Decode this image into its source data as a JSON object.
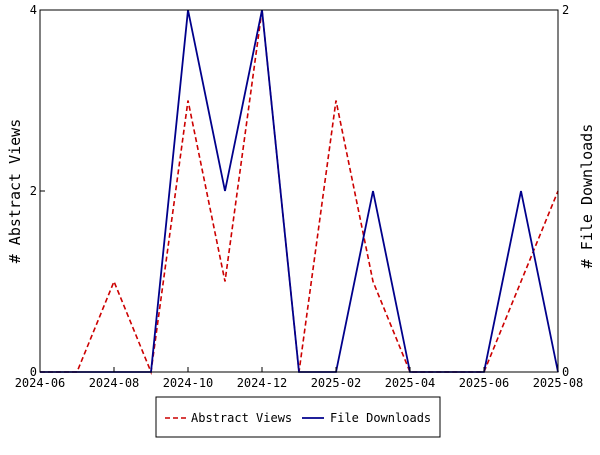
{
  "chart_data": {
    "type": "line",
    "x": [
      "2024-06",
      "2024-07",
      "2024-08",
      "2024-09",
      "2024-10",
      "2024-11",
      "2024-12",
      "2025-01",
      "2025-02",
      "2025-03",
      "2025-04",
      "2025-05",
      "2025-06",
      "2025-07",
      "2025-08"
    ],
    "x_ticks": [
      "2024-06",
      "2024-08",
      "2024-10",
      "2024-12",
      "2025-02",
      "2025-04",
      "2025-06",
      "2025-08"
    ],
    "y_left": {
      "label": "# Abstract Views",
      "ylim": [
        0,
        4
      ],
      "ticks": [
        "0",
        "2",
        "4"
      ]
    },
    "y_right": {
      "label": "# File Downloads",
      "ylim": [
        0,
        2
      ],
      "ticks": [
        "0",
        "2"
      ]
    },
    "series": [
      {
        "name": "Abstract Views",
        "axis": "left",
        "color": "#cc0000",
        "dash": "dashed",
        "values": [
          0,
          0,
          1,
          0,
          3,
          1,
          4,
          0,
          3,
          1,
          0,
          0,
          0,
          1,
          2
        ]
      },
      {
        "name": "File Downloads",
        "axis": "right",
        "color": "#00008b",
        "dash": "solid",
        "values": [
          0,
          0,
          0,
          0,
          2,
          1,
          2,
          0,
          0,
          1,
          0,
          0,
          0,
          1,
          0
        ]
      }
    ],
    "grid": false,
    "legend": "bottom"
  }
}
